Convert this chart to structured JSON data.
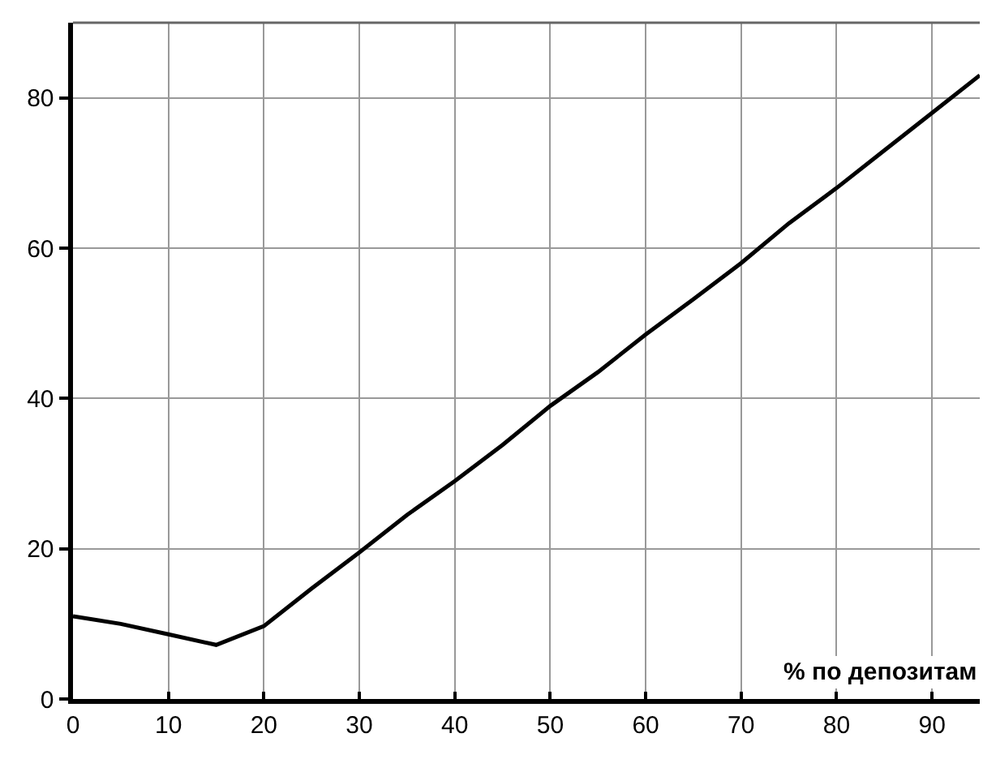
{
  "chart_data": {
    "type": "line",
    "xlabel": "% по депозитам",
    "x": [
      0,
      5,
      10,
      15,
      20,
      25,
      30,
      35,
      40,
      45,
      50,
      55,
      60,
      65,
      70,
      75,
      80,
      85,
      90,
      95
    ],
    "series": [
      {
        "color": "#000000",
        "values": [
          11,
          10,
          8.6,
          7.2,
          9.7,
          14.7,
          19.5,
          24.5,
          29,
          33.8,
          39,
          43.5,
          48.5,
          53.2,
          58,
          63.3,
          68,
          73,
          78,
          83
        ]
      }
    ],
    "xlim": [
      0,
      95
    ],
    "xticks": [
      0,
      10,
      20,
      30,
      40,
      50,
      60,
      70,
      80,
      90
    ],
    "ylim": [
      0,
      90
    ],
    "yticks": [
      0,
      20,
      40,
      60,
      80
    ],
    "grid": true,
    "marker": "none",
    "line_style": "solid"
  }
}
